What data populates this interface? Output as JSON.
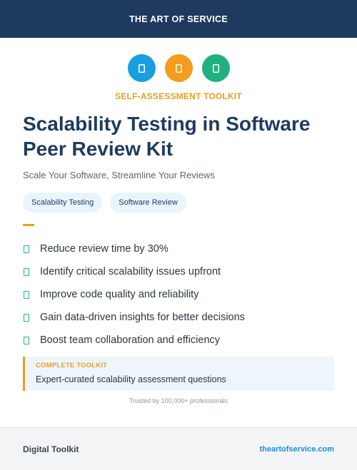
{
  "header": {
    "brand": "THE ART OF SERVICE"
  },
  "icons": [
    {
      "name": "book-icon",
      "color": "#1a9ee0"
    },
    {
      "name": "clipboard-icon",
      "color": "#f39c1f"
    },
    {
      "name": "document-icon",
      "color": "#1fb280"
    }
  ],
  "eyebrow": "SELF-ASSESSMENT TOOLKIT",
  "title": "Scalability Testing in Software Peer Review Kit",
  "subtitle": "Scale Your Software, Streamline Your Reviews",
  "tags": [
    "Scalability Testing",
    "Software Review"
  ],
  "benefits": [
    "Reduce review time by 30%",
    "Identify critical scalability issues upfront",
    "Improve code quality and reliability",
    "Gain data-driven insights for better decisions",
    "Boost team collaboration and efficiency"
  ],
  "callout": {
    "label": "COMPLETE TOOLKIT",
    "text": "Expert-curated scalability assessment questions"
  },
  "trusted": "Trusted by 100,000+ professionals",
  "footer": {
    "left": "Digital Toolkit",
    "right": "theartofservice.com"
  },
  "colors": {
    "navy": "#1f3a5f",
    "accent": "#e8a020",
    "check": "#1db584",
    "link": "#1a8fd8"
  }
}
